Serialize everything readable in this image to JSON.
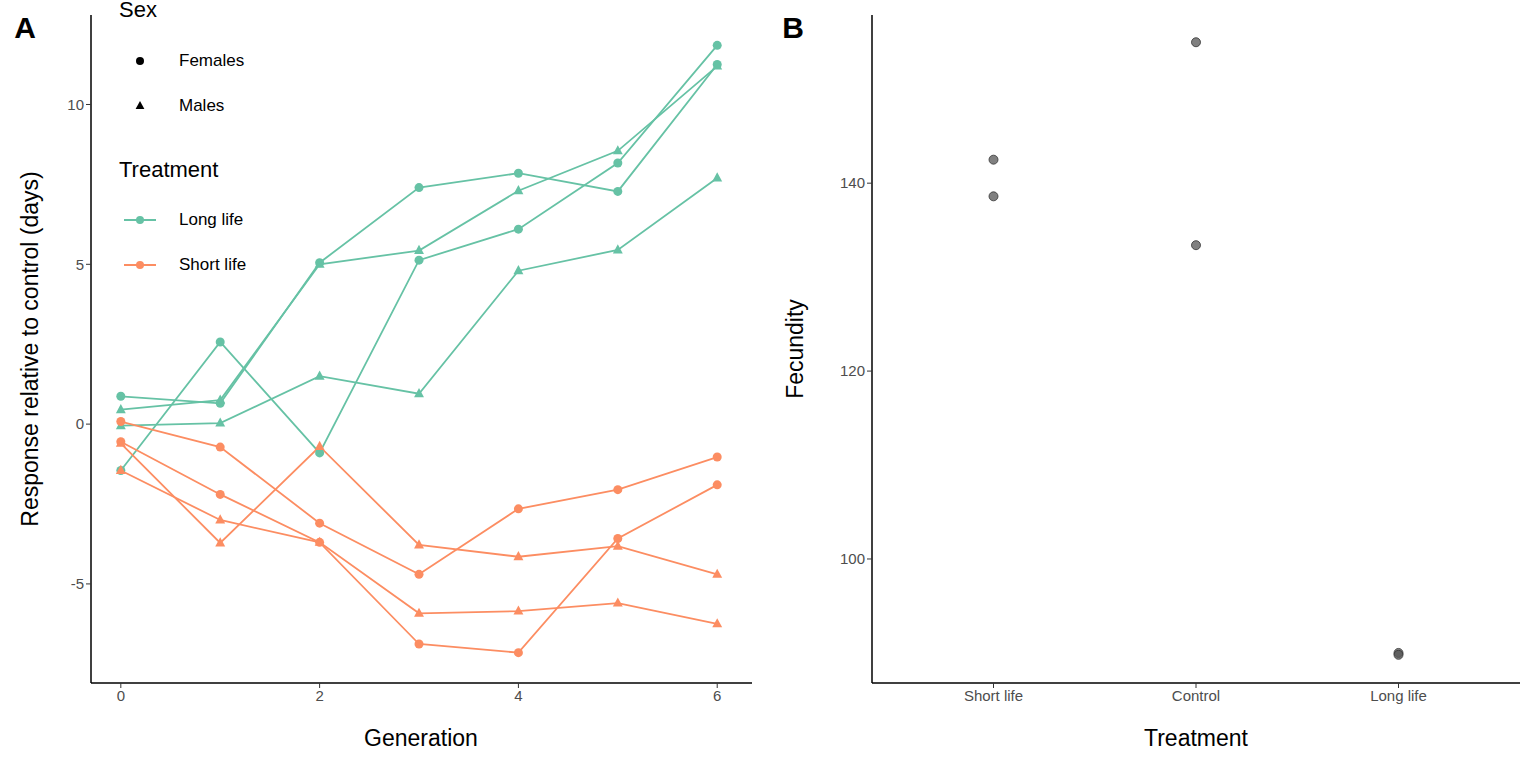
{
  "chart_data": [
    {
      "panel": "A",
      "type": "line",
      "xlabel": "Generation",
      "ylabel": "Response relative to control (days)",
      "x": [
        0,
        1,
        2,
        3,
        4,
        5,
        6
      ],
      "xlim": [
        -0.3,
        6.35
      ],
      "xticks": [
        0,
        2,
        4,
        6
      ],
      "ylim": [
        -8.1,
        12.8
      ],
      "yticks": [
        -5,
        0,
        5,
        10
      ],
      "legend": "top-left",
      "legend_groups": [
        {
          "title": "Sex",
          "entries": [
            {
              "name": "Females",
              "marker": "circle"
            },
            {
              "name": "Males",
              "marker": "triangle"
            }
          ]
        },
        {
          "title": "Treatment",
          "entries": [
            {
              "name": "Long life",
              "color": "#66c2a5"
            },
            {
              "name": "Short life",
              "color": "#fc8d62"
            }
          ]
        }
      ],
      "series": [
        {
          "name": "Long life",
          "sex": "Females",
          "color": "#66c2a5",
          "marker": "circle",
          "values": [
            0.87,
            0.65,
            5.05,
            7.4,
            7.85,
            7.28,
            11.25
          ]
        },
        {
          "name": "Long life",
          "sex": "Females",
          "color": "#66c2a5",
          "marker": "circle",
          "values": [
            -1.45,
            2.57,
            -0.9,
            5.13,
            6.1,
            8.17,
            11.85
          ]
        },
        {
          "name": "Long life",
          "sex": "Males",
          "color": "#66c2a5",
          "marker": "triangle",
          "values": [
            0.45,
            0.75,
            5.0,
            5.43,
            7.3,
            8.55,
            11.2
          ]
        },
        {
          "name": "Long life",
          "sex": "Males",
          "color": "#66c2a5",
          "marker": "triangle",
          "values": [
            -0.05,
            0.03,
            1.5,
            0.95,
            4.8,
            5.45,
            7.7
          ]
        },
        {
          "name": "Short life",
          "sex": "Females",
          "color": "#fc8d62",
          "marker": "circle",
          "values": [
            0.08,
            -0.72,
            -3.1,
            -4.7,
            -2.65,
            -2.05,
            -1.03
          ]
        },
        {
          "name": "Short life",
          "sex": "Females",
          "color": "#fc8d62",
          "marker": "circle",
          "values": [
            -0.55,
            -2.2,
            -3.7,
            -6.88,
            -7.15,
            -3.58,
            -1.9
          ]
        },
        {
          "name": "Short life",
          "sex": "Males",
          "color": "#fc8d62",
          "marker": "triangle",
          "values": [
            -1.45,
            -3.0,
            -3.7,
            -5.92,
            -5.85,
            -5.6,
            -6.25
          ]
        },
        {
          "name": "Short life",
          "sex": "Males",
          "color": "#fc8d62",
          "marker": "triangle",
          "values": [
            -0.6,
            -3.72,
            -0.7,
            -3.78,
            -4.15,
            -3.82,
            -4.7
          ]
        }
      ]
    },
    {
      "panel": "B",
      "type": "scatter",
      "xlabel": "Treatment",
      "ylabel": "Fecundity",
      "categories": [
        "Short life",
        "Control",
        "Long life"
      ],
      "values": [
        [
          142.5,
          138.6
        ],
        [
          155.0,
          133.4
        ],
        [
          90.0,
          89.8
        ]
      ],
      "color": "#555555",
      "marker": "circle",
      "ylim": [
        86.8,
        157.9
      ],
      "yticks": [
        100,
        120,
        140
      ]
    }
  ]
}
